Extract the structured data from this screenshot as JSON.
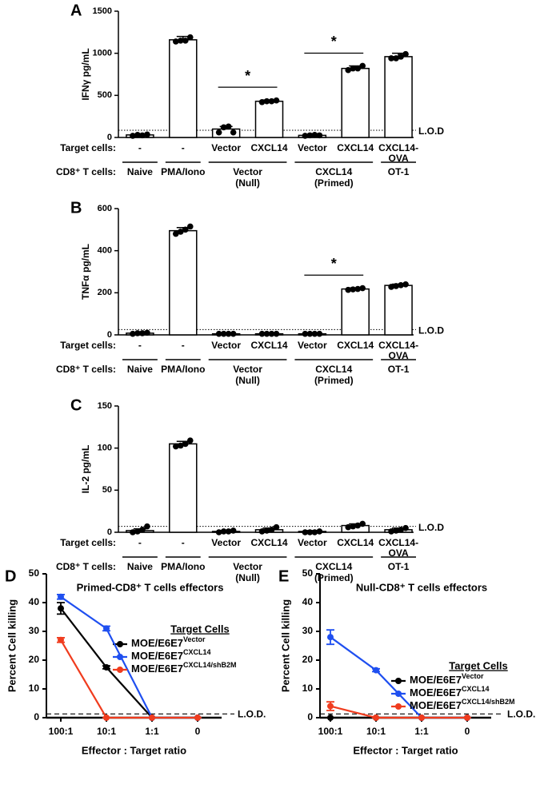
{
  "chart_data": [
    {
      "type": "bar",
      "panel": "A",
      "ylabel": "IFNγ pg/mL",
      "ylim": [
        0,
        1500
      ],
      "yticks": [
        0,
        500,
        1000,
        1500
      ],
      "categories": [
        [
          "-"
        ],
        [
          "-"
        ],
        [
          "Vector"
        ],
        [
          "CXCL14"
        ],
        [
          "Vector"
        ],
        [
          "CXCL14"
        ],
        [
          "CXCL14-",
          "OVA"
        ]
      ],
      "values": [
        30,
        1160,
        100,
        430,
        25,
        820,
        960
      ],
      "errors": [
        10,
        40,
        30,
        15,
        5,
        30,
        40
      ],
      "points": [
        [
          20,
          30,
          25,
          35
        ],
        [
          1140,
          1150,
          1150,
          1190
        ],
        [
          60,
          120,
          130,
          60
        ],
        [
          420,
          430,
          430,
          440
        ],
        [
          20,
          25,
          30,
          25
        ],
        [
          800,
          820,
          820,
          850
        ],
        [
          940,
          940,
          960,
          990
        ]
      ],
      "row_labels": [
        "Target cells:",
        "CD8⁺ T cells:"
      ],
      "group_labels": [
        [
          "Naive"
        ],
        [
          "PMA/Iono"
        ],
        [
          "Vector",
          "(Null)"
        ],
        [
          "CXCL14",
          "(Primed)"
        ],
        [
          "OT-1"
        ]
      ],
      "group_sizes": [
        1,
        1,
        2,
        2,
        1
      ],
      "lod": {
        "value": 85,
        "label": "L.O.D"
      },
      "annotations": [
        {
          "text": "*",
          "bars": [
            2,
            3
          ]
        },
        {
          "text": "*",
          "bars": [
            4,
            5
          ]
        }
      ],
      "color": "#000000"
    },
    {
      "type": "bar",
      "panel": "B",
      "ylabel": "TNFα pg/mL",
      "ylim": [
        0,
        600
      ],
      "yticks": [
        0,
        200,
        400,
        600
      ],
      "categories": [
        [
          "-"
        ],
        [
          "-"
        ],
        [
          "Vector"
        ],
        [
          "CXCL14"
        ],
        [
          "Vector"
        ],
        [
          "CXCL14"
        ],
        [
          "CXCL14-",
          "OVA"
        ]
      ],
      "values": [
        8,
        495,
        5,
        5,
        5,
        218,
        235
      ],
      "errors": [
        2,
        15,
        1,
        1,
        1,
        5,
        6
      ],
      "points": [
        [
          5,
          8,
          8,
          10
        ],
        [
          480,
          490,
          500,
          515
        ],
        [
          5,
          5,
          5,
          5
        ],
        [
          5,
          5,
          5,
          5
        ],
        [
          5,
          5,
          5,
          5
        ],
        [
          214,
          216,
          218,
          222
        ],
        [
          228,
          232,
          236,
          240
        ]
      ],
      "row_labels": [
        "Target cells:",
        "CD8⁺ T cells:"
      ],
      "group_labels": [
        [
          "Naive"
        ],
        [
          "PMA/Iono"
        ],
        [
          "Vector",
          "(Null)"
        ],
        [
          "CXCL14",
          "(Primed)"
        ],
        [
          "OT-1"
        ]
      ],
      "group_sizes": [
        1,
        1,
        2,
        2,
        1
      ],
      "lod": {
        "value": 25,
        "label": "L.O.D"
      },
      "annotations": [
        {
          "text": "*",
          "bars": [
            4,
            5
          ]
        }
      ],
      "color": "#000000"
    },
    {
      "type": "bar",
      "panel": "C",
      "ylabel": "IL-2 pg/mL",
      "ylim": [
        0,
        150
      ],
      "yticks": [
        0,
        50,
        100,
        150
      ],
      "categories": [
        [
          "-"
        ],
        [
          "-"
        ],
        [
          "Vector"
        ],
        [
          "CXCL14"
        ],
        [
          "Vector"
        ],
        [
          "CXCL14"
        ],
        [
          "CXCL14-",
          "OVA"
        ]
      ],
      "values": [
        2,
        105,
        1,
        3,
        1,
        8,
        3
      ],
      "errors": [
        2,
        3,
        1,
        2,
        1,
        2,
        2
      ],
      "points": [
        [
          0,
          1,
          3,
          7
        ],
        [
          102,
          103,
          105,
          109
        ],
        [
          0,
          1,
          1,
          2
        ],
        [
          1,
          2,
          3,
          6
        ],
        [
          0,
          0,
          0,
          1
        ],
        [
          6,
          7,
          8,
          10
        ],
        [
          1,
          2,
          3,
          5
        ]
      ],
      "row_labels": [
        "Target cells:",
        "CD8⁺ T cells:"
      ],
      "group_labels": [
        [
          "Naive"
        ],
        [
          "PMA/Iono"
        ],
        [
          "Vector",
          "(Null)"
        ],
        [
          "CXCL14",
          "(Primed)"
        ],
        [
          "OT-1"
        ]
      ],
      "group_sizes": [
        1,
        1,
        2,
        2,
        1
      ],
      "lod": {
        "value": 7,
        "label": "L.O.D"
      },
      "annotations": [],
      "color": "#000000"
    },
    {
      "type": "line",
      "panel": "D",
      "title": "Primed-CD8⁺ T cells effectors",
      "ylabel": "Percent Cell killing",
      "xlabel": "Effector : Target ratio",
      "categories": [
        "100:1",
        "10:1",
        "1:1",
        "0"
      ],
      "ylim": [
        0,
        50
      ],
      "yticks": [
        0,
        10,
        20,
        30,
        40,
        50
      ],
      "legend_title": "Target Cells",
      "lod": {
        "value": 1.3,
        "label": "L.O.D."
      },
      "series": [
        {
          "name": [
            "MOE/E6E7",
            "Vector"
          ],
          "color": "#000000",
          "values": [
            38,
            17.5,
            0,
            0
          ],
          "errors": [
            2,
            0.5,
            0,
            0
          ]
        },
        {
          "name": [
            "MOE/E6E7",
            "CXCL14"
          ],
          "color": "#1f4ff0",
          "values": [
            42,
            31,
            0,
            0
          ],
          "errors": [
            0.8,
            0.8,
            0,
            0
          ]
        },
        {
          "name": [
            "MOE/E6E7",
            "CXCL14/shB2M"
          ],
          "color": "#f03c1e",
          "values": [
            27,
            0,
            0,
            0
          ],
          "errors": [
            0.8,
            0,
            0,
            0
          ]
        }
      ]
    },
    {
      "type": "line",
      "panel": "E",
      "title": "Null-CD8⁺ T cells effectors",
      "ylabel": "Percent Cell killing",
      "xlabel": "Effector : Target ratio",
      "categories": [
        "100:1",
        "10:1",
        "1:1",
        "0"
      ],
      "ylim": [
        0,
        50
      ],
      "yticks": [
        0,
        10,
        20,
        30,
        40,
        50
      ],
      "legend_title": "Target Cells",
      "lod": {
        "value": 1.3,
        "label": "L.O.D."
      },
      "series": [
        {
          "name": [
            "MOE/E6E7",
            "Vector"
          ],
          "color": "#000000",
          "values": [
            0,
            0,
            0,
            0
          ],
          "errors": [
            0,
            0,
            0,
            0
          ]
        },
        {
          "name": [
            "MOE/E6E7",
            "CXCL14"
          ],
          "color": "#1f4ff0",
          "values": [
            28,
            16.5,
            0,
            0
          ],
          "errors": [
            2.5,
            0.5,
            0,
            0
          ]
        },
        {
          "name": [
            "MOE/E6E7",
            "CXCL14/shB2M"
          ],
          "color": "#f03c1e",
          "values": [
            4,
            0,
            0,
            0
          ],
          "errors": [
            1.5,
            0,
            0,
            0
          ]
        }
      ]
    }
  ]
}
